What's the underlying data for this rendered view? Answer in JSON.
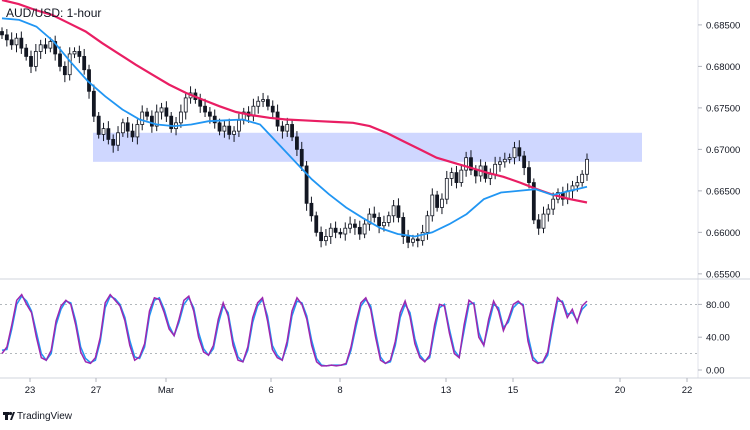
{
  "chart_data": [
    {
      "type": "candlestick",
      "panel": "price",
      "title": "AUD/USD: 1-hour",
      "y_ticks": [
        "0.68500",
        "0.68000",
        "0.67500",
        "0.67000",
        "0.66500",
        "0.66000",
        "0.65500"
      ],
      "ylim": [
        0.6545,
        0.688
      ],
      "x_ticks": [
        "23",
        "27",
        "Mar",
        "6",
        "8",
        "13",
        "15",
        "20",
        "22"
      ],
      "resistance_zone": {
        "low": 0.6685,
        "high": 0.672,
        "color": "#bfc9ff"
      },
      "series": [
        {
          "style": "candles",
          "color": "#131722",
          "close": [
            0.6838,
            0.6832,
            0.6826,
            0.6834,
            0.6822,
            0.6812,
            0.68,
            0.6818,
            0.6826,
            0.6822,
            0.683,
            0.6815,
            0.68,
            0.679,
            0.6815,
            0.6818,
            0.6812,
            0.6796,
            0.677,
            0.674,
            0.6718,
            0.6725,
            0.6712,
            0.6705,
            0.672,
            0.6732,
            0.6722,
            0.6715,
            0.673,
            0.6745,
            0.674,
            0.6728,
            0.6745,
            0.675,
            0.674,
            0.6725,
            0.6732,
            0.6745,
            0.6762,
            0.6768,
            0.676,
            0.6752,
            0.6745,
            0.674,
            0.6732,
            0.6722,
            0.6728,
            0.6718,
            0.6722,
            0.6735,
            0.6745,
            0.674,
            0.6752,
            0.6758,
            0.676,
            0.6752,
            0.6745,
            0.6728,
            0.6722,
            0.673,
            0.6715,
            0.67,
            0.668,
            0.6635,
            0.662,
            0.66,
            0.659,
            0.6595,
            0.6605,
            0.66,
            0.6598,
            0.6605,
            0.661,
            0.6606,
            0.6598,
            0.661,
            0.6622,
            0.6618,
            0.6608,
            0.6612,
            0.662,
            0.6632,
            0.6618,
            0.6595,
            0.6588,
            0.6592,
            0.659,
            0.66,
            0.662,
            0.6645,
            0.663,
            0.664,
            0.6665,
            0.6672,
            0.666,
            0.6675,
            0.669,
            0.6675,
            0.6668,
            0.668,
            0.6665,
            0.667,
            0.6682,
            0.6685,
            0.6688,
            0.669,
            0.6702,
            0.6692,
            0.6678,
            0.666,
            0.6615,
            0.6605,
            0.6622,
            0.6628,
            0.664,
            0.6648,
            0.664,
            0.665,
            0.6656,
            0.666,
            0.667,
            0.6688
          ]
        },
        {
          "name": "",
          "style": "line",
          "color": "#e91e63",
          "values": [
            0.688,
            0.6875,
            0.6868,
            0.6862,
            0.6852,
            0.6842,
            0.6828,
            0.6815,
            0.6802,
            0.679,
            0.6778,
            0.6768,
            0.676,
            0.6752,
            0.6745,
            0.6741,
            0.6738,
            0.6736,
            0.6735,
            0.6734,
            0.6733,
            0.6732,
            0.6728,
            0.672,
            0.671,
            0.67,
            0.669,
            0.6684,
            0.6678,
            0.6672,
            0.6667,
            0.666,
            0.6652,
            0.6645,
            0.664,
            0.6636
          ]
        },
        {
          "name": "",
          "style": "line",
          "color": "#2196f3",
          "values": [
            0.6858,
            0.6856,
            0.6848,
            0.683,
            0.6805,
            0.6782,
            0.6764,
            0.6748,
            0.6736,
            0.673,
            0.6728,
            0.673,
            0.6734,
            0.6735,
            0.6736,
            0.673,
            0.6708,
            0.6686,
            0.6664,
            0.6646,
            0.663,
            0.6617,
            0.6605,
            0.6598,
            0.6595,
            0.66,
            0.661,
            0.6622,
            0.664,
            0.6648,
            0.665,
            0.6652,
            0.6645,
            0.665,
            0.6655
          ]
        }
      ]
    },
    {
      "type": "line",
      "panel": "oscillator",
      "y_ticks": [
        "80.00",
        "40.00",
        "0.00"
      ],
      "ylim": [
        0,
        100
      ],
      "reference_lines": [
        80,
        20
      ],
      "series": [
        {
          "name": "",
          "color": "#9c27b0",
          "values": [
            20,
            28,
            55,
            85,
            92,
            80,
            70,
            40,
            15,
            12,
            24,
            60,
            78,
            85,
            80,
            55,
            22,
            10,
            8,
            15,
            40,
            82,
            92,
            85,
            78,
            60,
            30,
            12,
            16,
            32,
            72,
            88,
            86,
            70,
            50,
            42,
            62,
            85,
            90,
            72,
            40,
            22,
            18,
            30,
            62,
            82,
            66,
            30,
            12,
            10,
            28,
            64,
            82,
            88,
            60,
            25,
            15,
            12,
            35,
            72,
            88,
            80,
            62,
            30,
            10,
            5,
            5,
            6,
            5,
            6,
            8,
            28,
            58,
            82,
            88,
            74,
            40,
            12,
            8,
            12,
            35,
            70,
            84,
            65,
            32,
            15,
            10,
            18,
            55,
            80,
            78,
            45,
            20,
            15,
            55,
            85,
            80,
            40,
            30,
            62,
            84,
            72,
            48,
            62,
            80,
            84,
            78,
            35,
            12,
            8,
            10,
            22,
            58,
            88,
            82,
            64,
            74,
            58,
            78,
            84
          ]
        },
        {
          "name": "",
          "color": "#2196f3",
          "values": [
            24,
            25,
            50,
            80,
            90,
            84,
            72,
            46,
            20,
            12,
            20,
            55,
            74,
            84,
            82,
            60,
            28,
            14,
            9,
            12,
            35,
            76,
            90,
            87,
            80,
            64,
            36,
            16,
            14,
            28,
            66,
            85,
            88,
            74,
            54,
            42,
            58,
            80,
            88,
            76,
            46,
            26,
            18,
            26,
            56,
            78,
            70,
            36,
            16,
            10,
            24,
            58,
            78,
            86,
            66,
            30,
            18,
            12,
            30,
            66,
            84,
            82,
            66,
            36,
            14,
            6,
            5,
            6,
            6,
            6,
            7,
            24,
            52,
            78,
            86,
            78,
            46,
            16,
            8,
            10,
            30,
            64,
            80,
            70,
            38,
            18,
            11,
            15,
            48,
            76,
            80,
            50,
            24,
            16,
            48,
            80,
            82,
            46,
            30,
            56,
            80,
            76,
            52,
            58,
            76,
            82,
            80,
            42,
            16,
            9,
            9,
            18,
            52,
            84,
            84,
            68,
            70,
            60,
            74,
            80
          ]
        }
      ]
    }
  ],
  "branding": {
    "text": "TradingView"
  }
}
